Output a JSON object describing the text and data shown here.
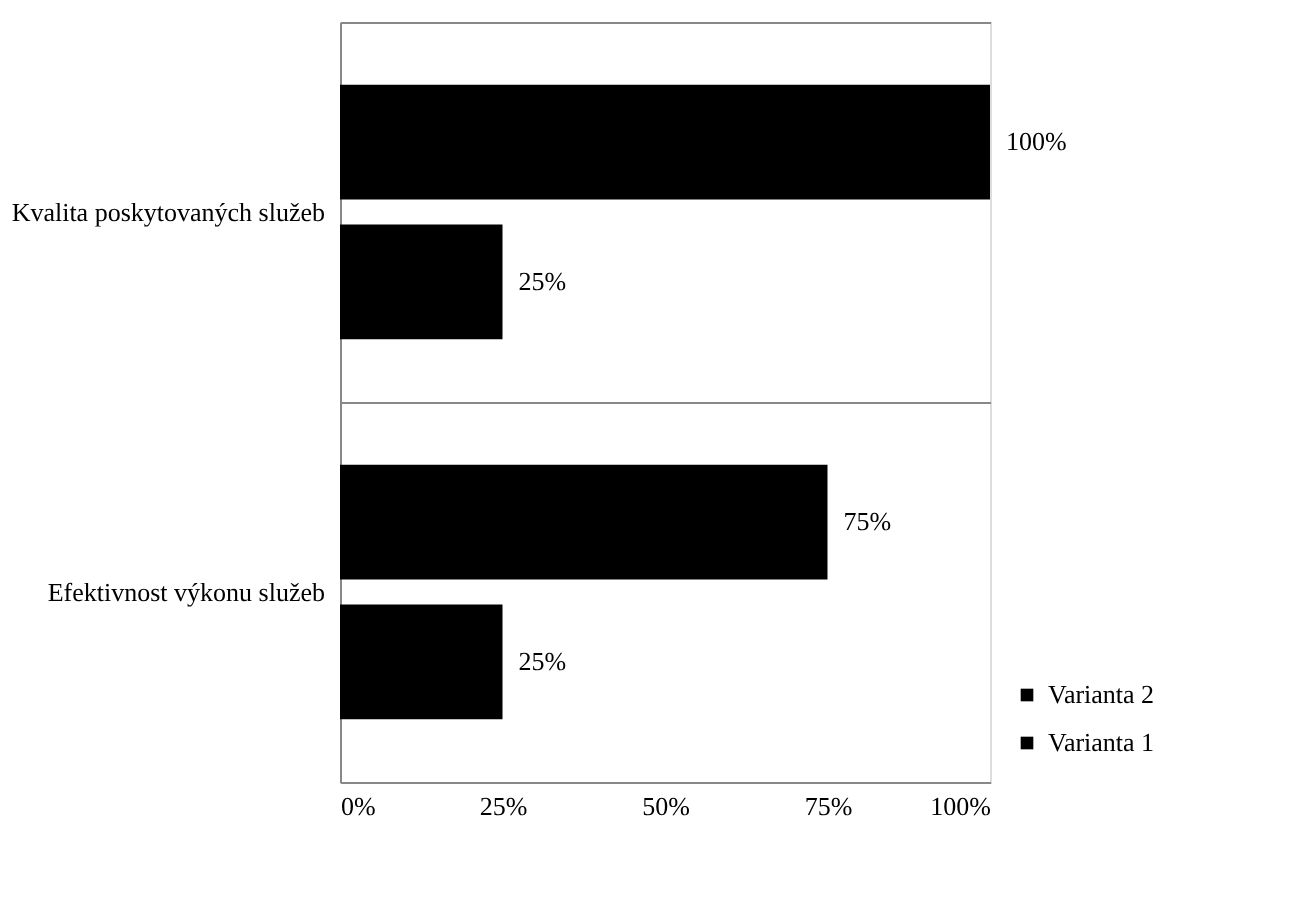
{
  "chart_data": {
    "type": "bar",
    "orientation": "horizontal",
    "categories": [
      "Kvalita poskytovaných služeb",
      "Efektivnost výkonu služeb"
    ],
    "series": [
      {
        "name": "Varianta 2",
        "color": "#000000",
        "values": [
          100,
          75
        ],
        "value_labels": [
          "100%",
          "75%"
        ]
      },
      {
        "name": "Varianta 1",
        "color": "#000000",
        "values": [
          25,
          25
        ],
        "value_labels": [
          "25%",
          "25%"
        ]
      }
    ],
    "xlim": [
      0,
      100
    ],
    "xticks": [
      {
        "value": 0,
        "label": "0%"
      },
      {
        "value": 25,
        "label": "25%"
      },
      {
        "value": 50,
        "label": "50%"
      },
      {
        "value": 75,
        "label": "75%"
      },
      {
        "value": 100,
        "label": "100%"
      }
    ],
    "grid": "y",
    "legend": "bottom right"
  }
}
